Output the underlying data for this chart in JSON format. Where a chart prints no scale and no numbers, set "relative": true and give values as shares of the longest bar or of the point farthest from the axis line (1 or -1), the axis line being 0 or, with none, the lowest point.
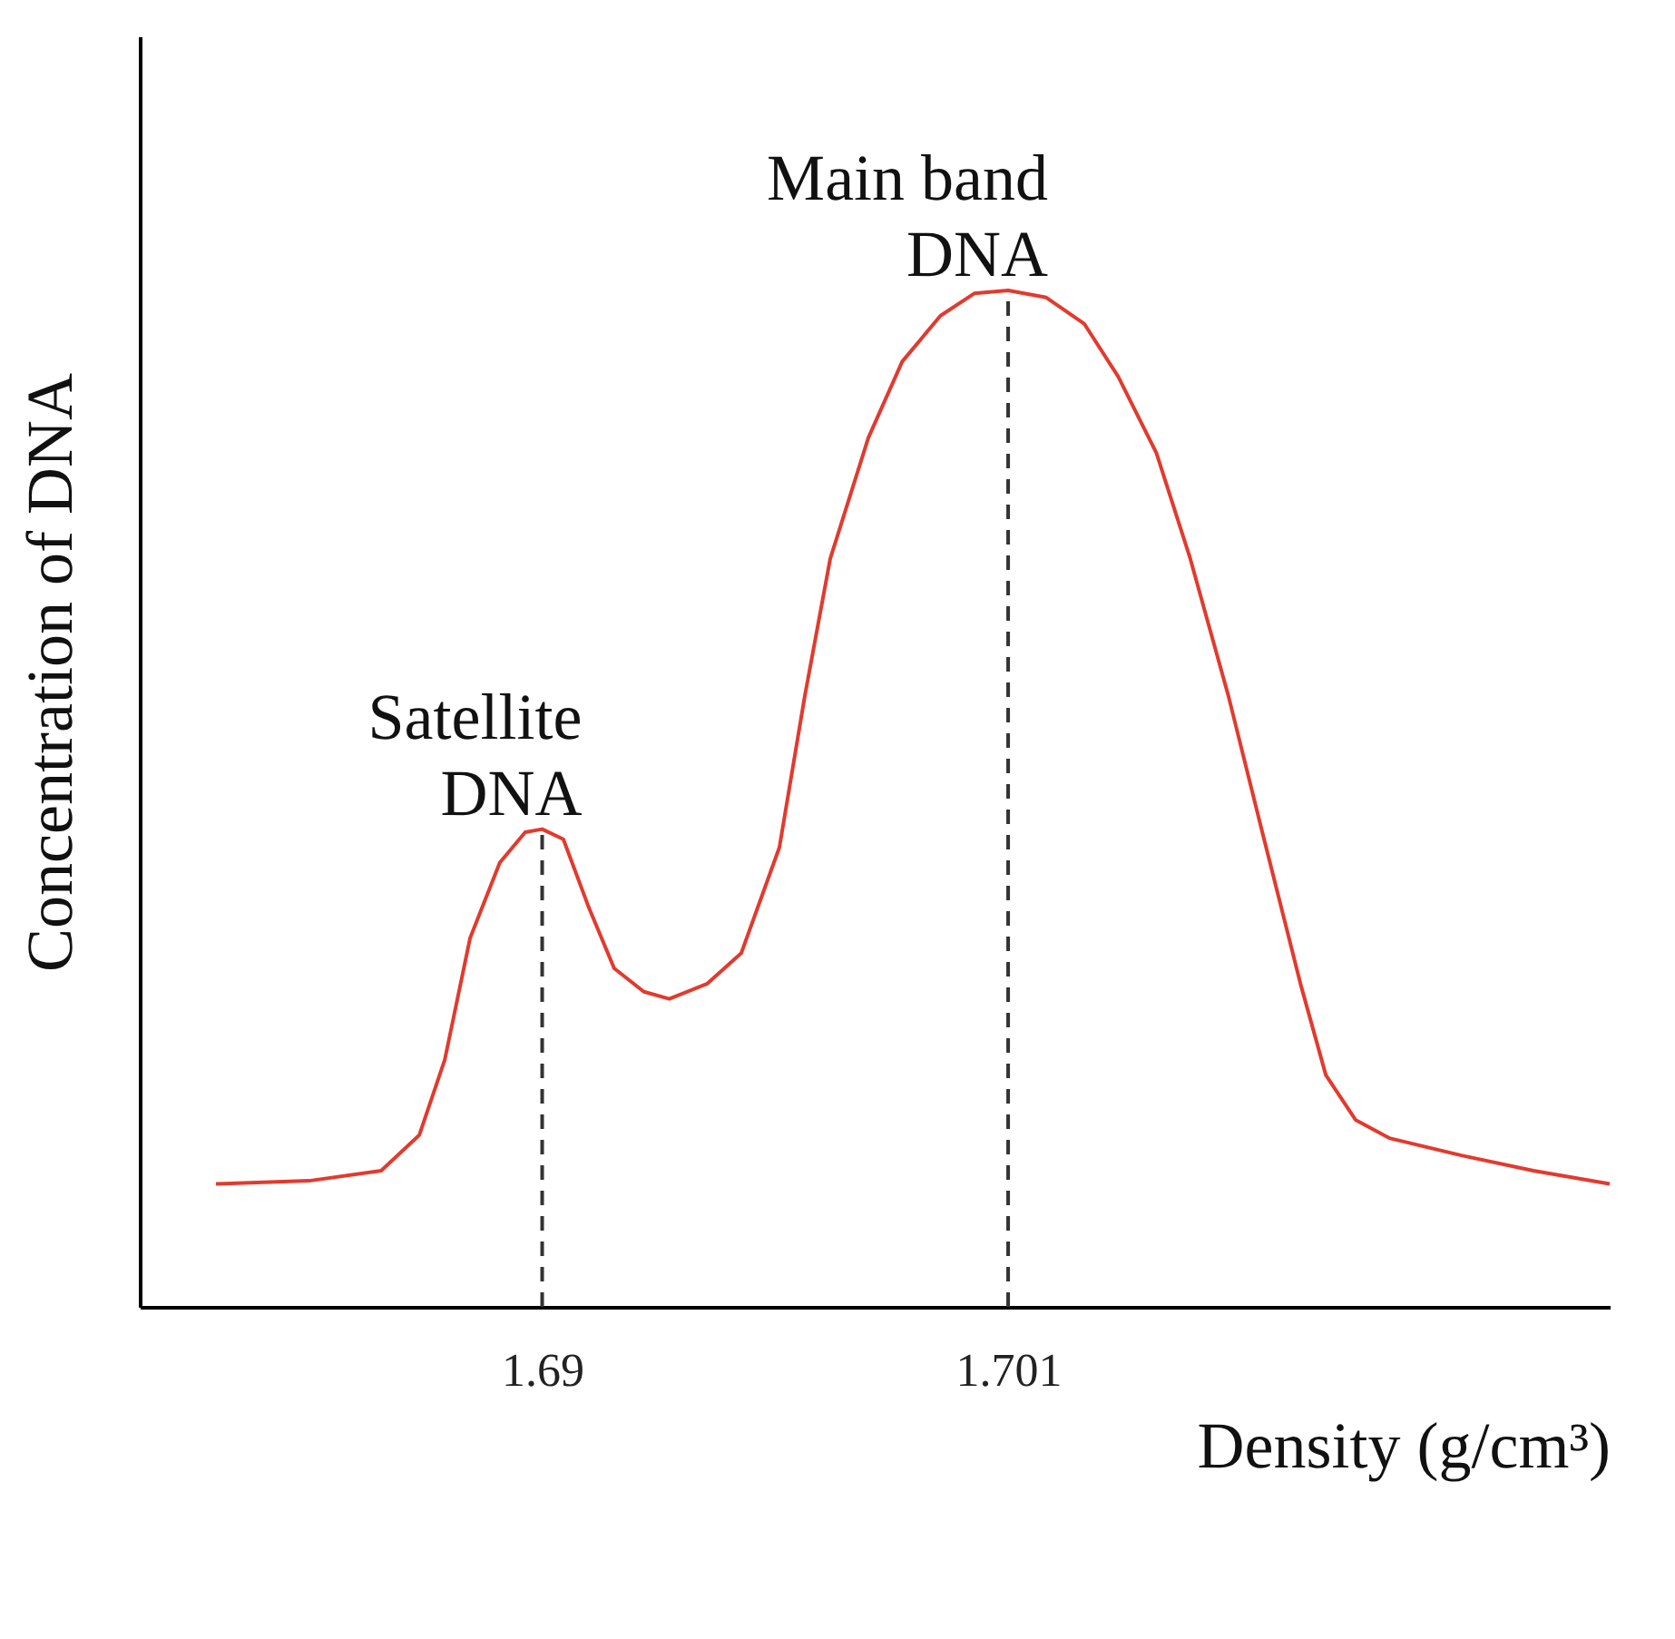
{
  "chart_data": {
    "type": "line",
    "relative": true,
    "xlabel": "Density (g/cm³)",
    "ylabel": "Concentration of DNA",
    "x": [
      1.6823,
      1.6845,
      1.6862,
      1.6871,
      1.6877,
      1.6883,
      1.689,
      1.6896,
      1.69,
      1.6905,
      1.6911,
      1.6917,
      1.6924,
      1.693,
      1.6939,
      1.6947,
      1.6956,
      1.6962,
      1.6968,
      1.6977,
      1.6985,
      1.6994,
      1.7002,
      1.701,
      1.7019,
      1.7028,
      1.7036,
      1.7045,
      1.7053,
      1.7062,
      1.707,
      1.7079,
      1.7085,
      1.7092,
      1.71,
      1.7117,
      1.7134,
      1.7152
    ],
    "series": [
      {
        "color": "#e23a2e",
        "values": [
          0.121,
          0.124,
          0.134,
          0.169,
          0.243,
          0.363,
          0.437,
          0.467,
          0.47,
          0.46,
          0.393,
          0.333,
          0.31,
          0.303,
          0.318,
          0.348,
          0.452,
          0.601,
          0.736,
          0.855,
          0.93,
          0.975,
          0.997,
          1.0,
          0.993,
          0.967,
          0.915,
          0.84,
          0.736,
          0.601,
          0.467,
          0.318,
          0.228,
          0.184,
          0.166,
          0.149,
          0.134,
          0.121
        ]
      }
    ],
    "xlim": [
      1.6805,
      1.7152
    ],
    "xticks": [
      {
        "value": 1.69,
        "label": "1.69"
      },
      {
        "value": 1.701,
        "label": "1.701"
      }
    ],
    "ref_lines": [
      {
        "axis": "x",
        "value": 1.69,
        "line_style": "dashed",
        "color": "#333333"
      },
      {
        "axis": "x",
        "value": 1.701,
        "line_style": "dashed",
        "color": "#333333"
      }
    ],
    "annotations": [
      {
        "text": "Satellite\nDNA",
        "x": 1.69,
        "y": 0.47
      },
      {
        "text": "Main band\nDNA",
        "x": 1.701,
        "y": 1.0
      }
    ],
    "grid": false,
    "marker": "none",
    "line_style": "solid"
  }
}
